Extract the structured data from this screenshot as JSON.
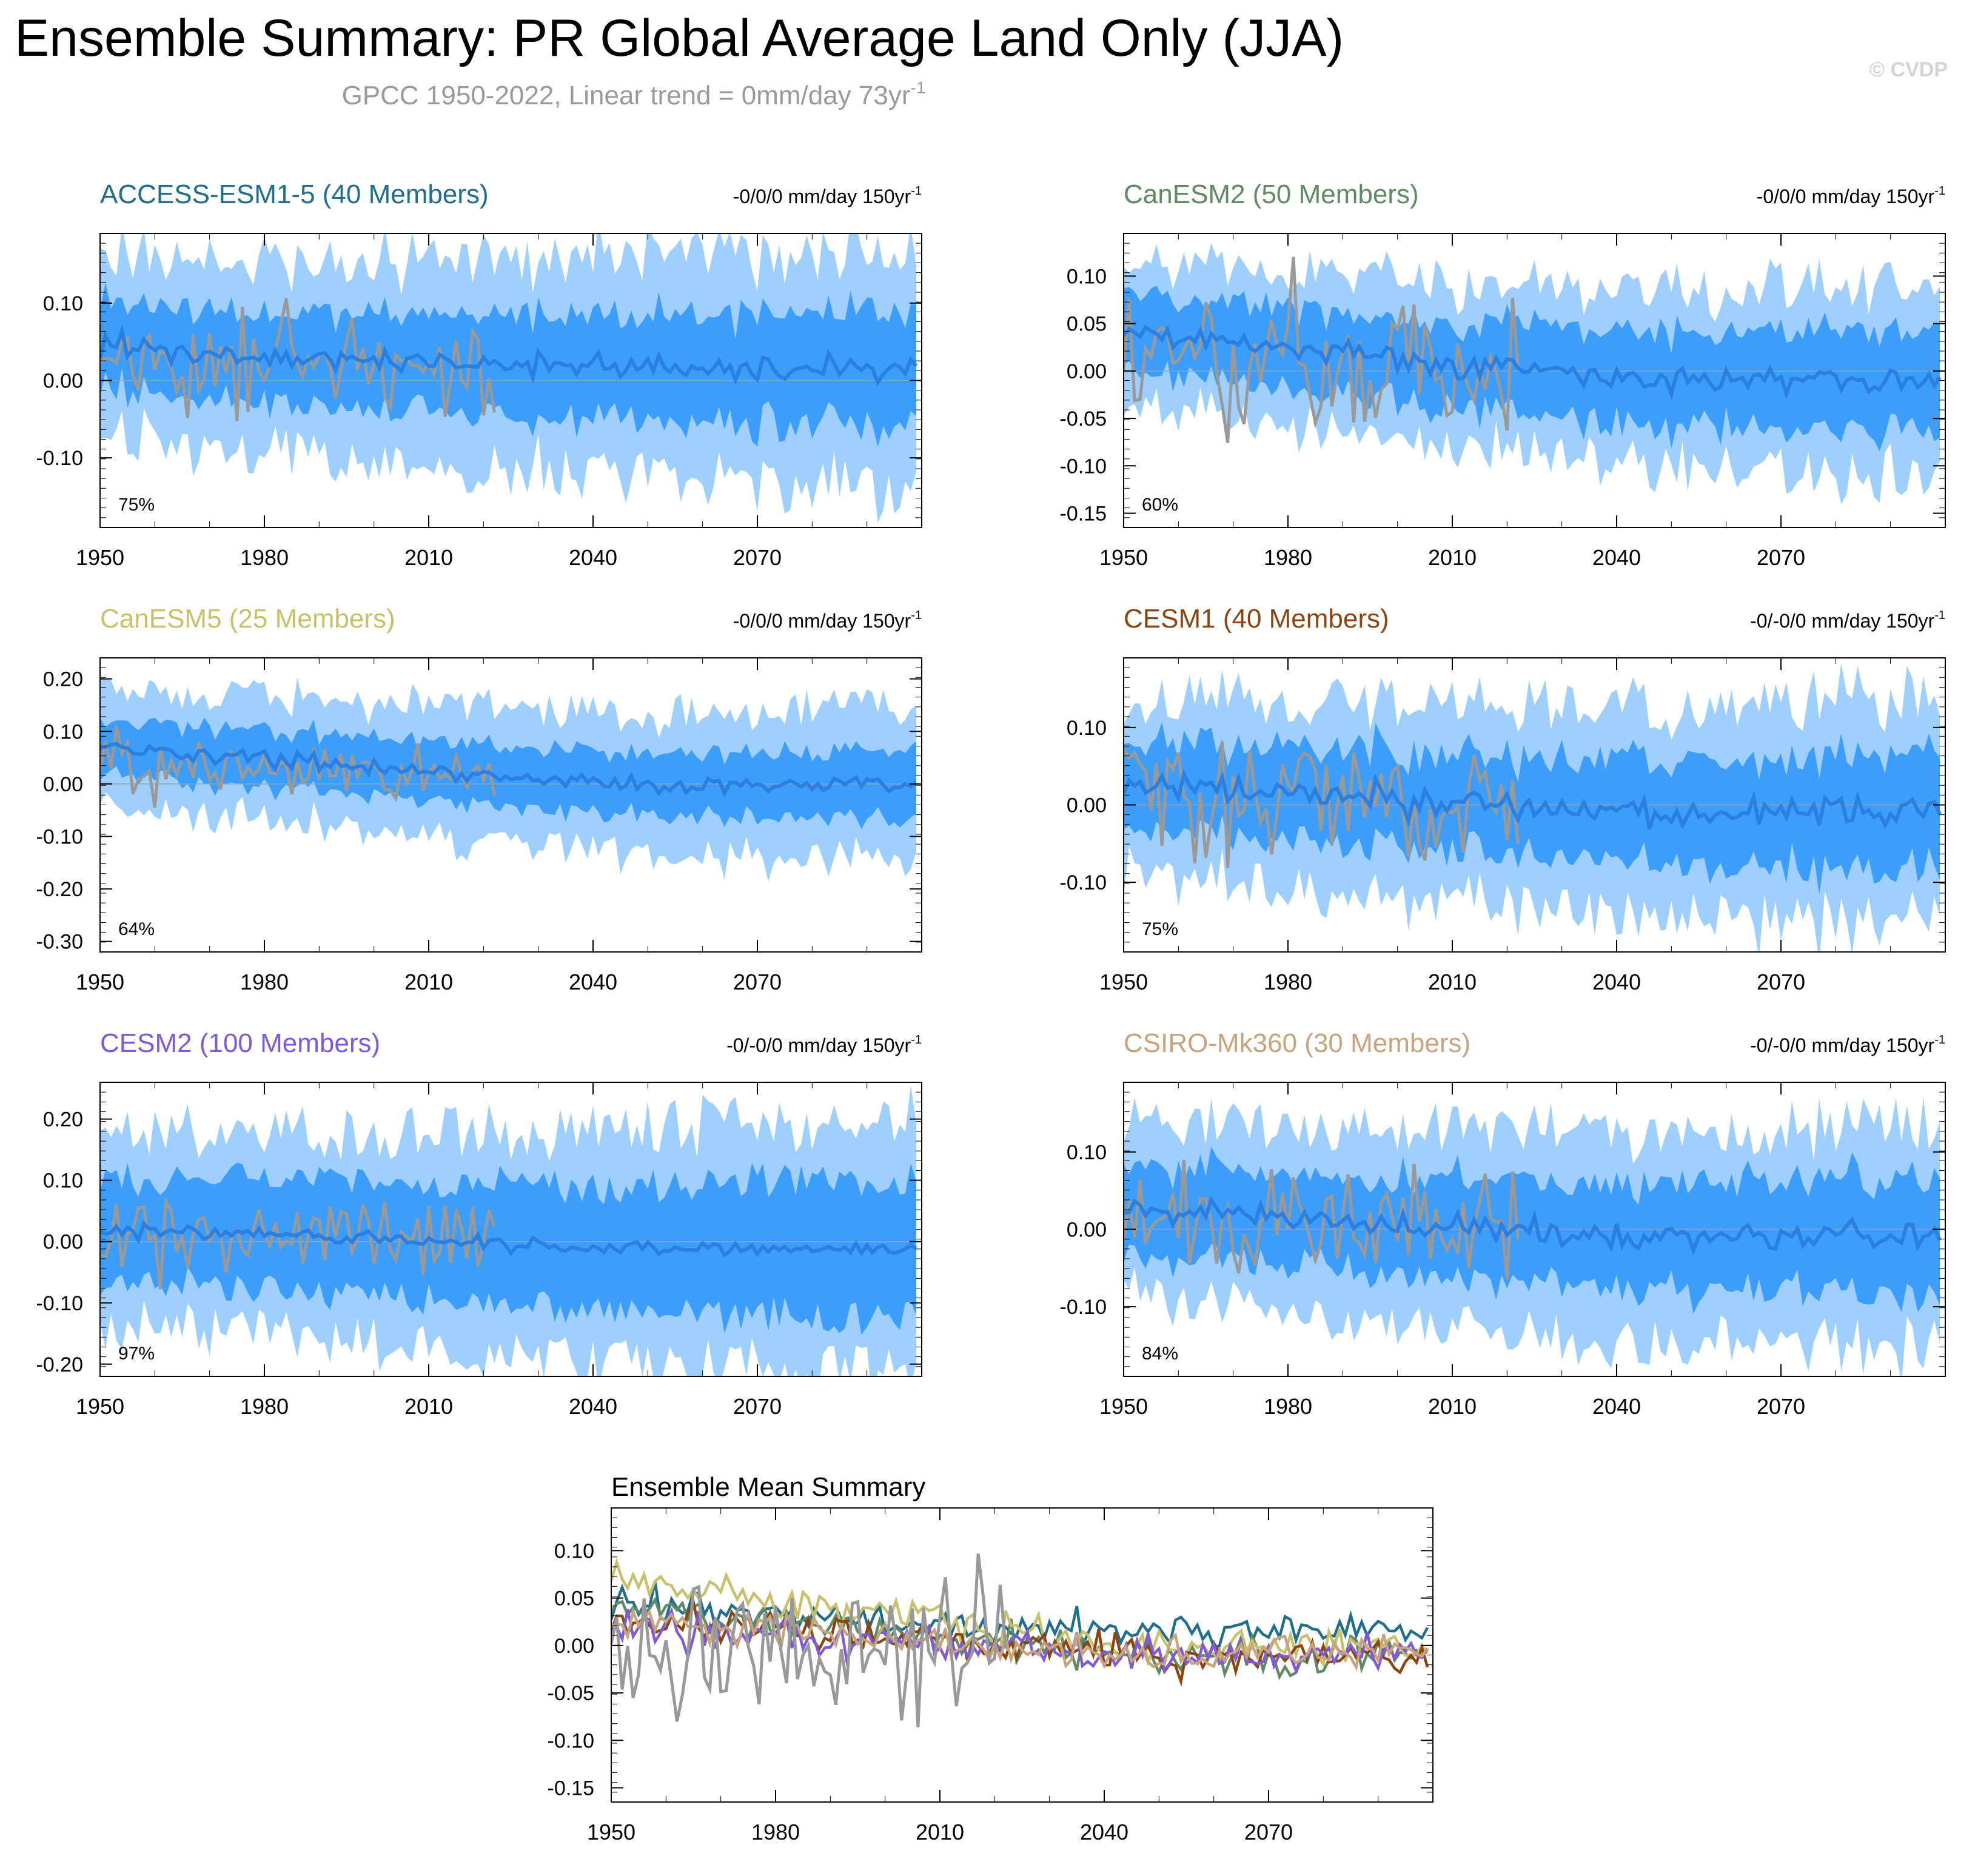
{
  "header": {
    "title": "Ensemble Summary: PR Global Average Land Only (JJA)",
    "subtitle": "GPCC 1950-2022, Linear trend = 0mm/day 73yr",
    "subtitle_sup": "-1",
    "watermark": "© CVDP"
  },
  "colors": {
    "outer_band": "#9fcfff",
    "inner_band": "#3c9dfb",
    "ensemble_mean": "#2b7fe0",
    "observed": "#999999",
    "zero_line": "#8aa6c0"
  },
  "chart_data": [
    {
      "type": "line",
      "title": "ACCESS-ESM1-5 (40 Members)",
      "title_color": "#1f6e8c",
      "trend": "-0/0/0 mm/day 150yr",
      "trend_sup": "-1",
      "percent": "75%",
      "xlim": [
        1950,
        2100
      ],
      "ylim": [
        -0.19,
        0.19
      ],
      "yticks": [
        0.1,
        0.0,
        -0.1
      ],
      "ytick_labels": [
        "0.10",
        "0.00",
        "-0.10"
      ],
      "xticks": [
        1950,
        1980,
        2010,
        2040,
        2070
      ],
      "xtick_labels": [
        "1950",
        "1980",
        "2010",
        "2040",
        "2070"
      ],
      "series": {
        "mean_start": 0.04,
        "mean_end": 0.015,
        "inner_halfwidth": 0.055,
        "outer_halfwidth": 0.115,
        "noise": 0.015,
        "obs_amplitude": 0.07,
        "seed": 11
      }
    },
    {
      "type": "line",
      "title": "CanESM2 (50 Members)",
      "title_color": "#5f8a63",
      "trend": "-0/0/0 mm/day 150yr",
      "trend_sup": "-1",
      "percent": "60%",
      "xlim": [
        1950,
        2100
      ],
      "ylim": [
        -0.165,
        0.145
      ],
      "yticks": [
        0.1,
        0.05,
        0.0,
        -0.05,
        -0.1,
        -0.15
      ],
      "ytick_labels": [
        "0.10",
        "0.05",
        "0.00",
        "-0.05",
        "-0.10",
        "-0.15"
      ],
      "xticks": [
        1950,
        1980,
        2010,
        2040,
        2070
      ],
      "xtick_labels": [
        "1950",
        "1980",
        "2010",
        "2040",
        "2070"
      ],
      "series": {
        "mean_start": 0.04,
        "mean_end": -0.01,
        "inner_halfwidth": 0.04,
        "outer_halfwidth": 0.075,
        "noise": 0.012,
        "obs_amplitude": 0.07,
        "seed": 23
      }
    },
    {
      "type": "line",
      "title": "CanESM5 (25 Members)",
      "title_color": "#c8c06a",
      "trend": "-0/0/0 mm/day 150yr",
      "trend_sup": "-1",
      "percent": "64%",
      "xlim": [
        1950,
        2100
      ],
      "ylim": [
        -0.32,
        0.24
      ],
      "yticks": [
        0.2,
        0.1,
        0.0,
        -0.1,
        -0.2,
        -0.3
      ],
      "ytick_labels": [
        "0.20",
        "0.10",
        "0.00",
        "-0.10",
        "-0.20",
        "-0.30"
      ],
      "xticks": [
        1950,
        1980,
        2010,
        2040,
        2070
      ],
      "xtick_labels": [
        "1950",
        "1980",
        "2010",
        "2040",
        "2070"
      ],
      "series": {
        "mean_start": 0.07,
        "mean_end": 0.0,
        "inner_halfwidth": 0.05,
        "outer_halfwidth": 0.11,
        "noise": 0.015,
        "obs_amplitude": 0.065,
        "seed": 37
      }
    },
    {
      "type": "line",
      "title": "CESM1 (40 Members)",
      "title_color": "#8b4513",
      "trend": "-0/-0/0 mm/day 150yr",
      "trend_sup": "-1",
      "percent": "75%",
      "xlim": [
        1950,
        2100
      ],
      "ylim": [
        -0.19,
        0.19
      ],
      "yticks": [
        0.1,
        0.0,
        -0.1
      ],
      "ytick_labels": [
        "0.10",
        "0.00",
        "-0.10"
      ],
      "xticks": [
        1950,
        1980,
        2010,
        2040,
        2070
      ],
      "xtick_labels": [
        "1950",
        "1980",
        "2010",
        "2040",
        "2070"
      ],
      "series": {
        "mean_start": 0.03,
        "mean_end": -0.01,
        "inner_halfwidth": 0.055,
        "outer_halfwidth": 0.11,
        "noise": 0.018,
        "obs_amplitude": 0.075,
        "seed": 41
      }
    },
    {
      "type": "line",
      "title": "CESM2 (100 Members)",
      "title_color": "#7e5ad6",
      "trend": "-0/-0/0 mm/day 150yr",
      "trend_sup": "-1",
      "percent": "97%",
      "xlim": [
        1950,
        2100
      ],
      "ylim": [
        -0.22,
        0.26
      ],
      "yticks": [
        0.2,
        0.1,
        0.0,
        -0.1,
        -0.2
      ],
      "ytick_labels": [
        "0.20",
        "0.10",
        "0.00",
        "-0.10",
        "-0.20"
      ],
      "xticks": [
        1950,
        1980,
        2010,
        2040,
        2070
      ],
      "xtick_labels": [
        "1950",
        "1980",
        "2010",
        "2040",
        "2070"
      ],
      "series": {
        "mean_start": 0.02,
        "mean_end": -0.01,
        "inner_halfwidth": 0.085,
        "outer_halfwidth": 0.155,
        "noise": 0.01,
        "obs_amplitude": 0.07,
        "seed": 53
      }
    },
    {
      "type": "line",
      "title": "CSIRO-Mk360 (30 Members)",
      "title_color": "#c9a27e",
      "trend": "-0/-0/0 mm/day 150yr",
      "trend_sup": "-1",
      "percent": "84%",
      "xlim": [
        1950,
        2100
      ],
      "ylim": [
        -0.19,
        0.19
      ],
      "yticks": [
        0.1,
        0.0,
        -0.1
      ],
      "ytick_labels": [
        "0.10",
        "0.00",
        "-0.10"
      ],
      "xticks": [
        1950,
        1980,
        2010,
        2040,
        2070
      ],
      "xtick_labels": [
        "1950",
        "1980",
        "2010",
        "2040",
        "2070"
      ],
      "series": {
        "mean_start": 0.025,
        "mean_end": -0.01,
        "inner_halfwidth": 0.055,
        "outer_halfwidth": 0.11,
        "noise": 0.018,
        "obs_amplitude": 0.075,
        "seed": 67
      }
    },
    {
      "type": "line",
      "title": "Ensemble Mean Summary",
      "title_color": "#000000",
      "xlim": [
        1950,
        2100
      ],
      "ylim": [
        -0.165,
        0.145
      ],
      "yticks": [
        0.1,
        0.05,
        0.0,
        -0.05,
        -0.1,
        -0.15
      ],
      "ytick_labels": [
        "0.10",
        "0.05",
        "0.00",
        "-0.05",
        "-0.10",
        "-0.15"
      ],
      "xticks": [
        1950,
        1980,
        2010,
        2040,
        2070
      ],
      "xtick_labels": [
        "1950",
        "1980",
        "2010",
        "2040",
        "2070"
      ],
      "series": [
        {
          "name": "ACCESS-ESM1-5",
          "color": "#1f6e8c",
          "start": 0.04,
          "end": 0.015,
          "seed": 11
        },
        {
          "name": "CanESM2",
          "color": "#5f8a63",
          "start": 0.04,
          "end": -0.01,
          "seed": 23
        },
        {
          "name": "CanESM5",
          "color": "#c8c06a",
          "start": 0.07,
          "end": 0.0,
          "seed": 37
        },
        {
          "name": "CESM1",
          "color": "#8b4513",
          "start": 0.03,
          "end": -0.01,
          "seed": 41
        },
        {
          "name": "CESM2",
          "color": "#7e5ad6",
          "start": 0.02,
          "end": -0.01,
          "seed": 53
        },
        {
          "name": "CSIRO-Mk360",
          "color": "#c9a27e",
          "start": 0.025,
          "end": -0.01,
          "seed": 67
        },
        {
          "name": "GPCC",
          "color": "#999999",
          "obs": true,
          "seed": 7
        }
      ]
    }
  ]
}
